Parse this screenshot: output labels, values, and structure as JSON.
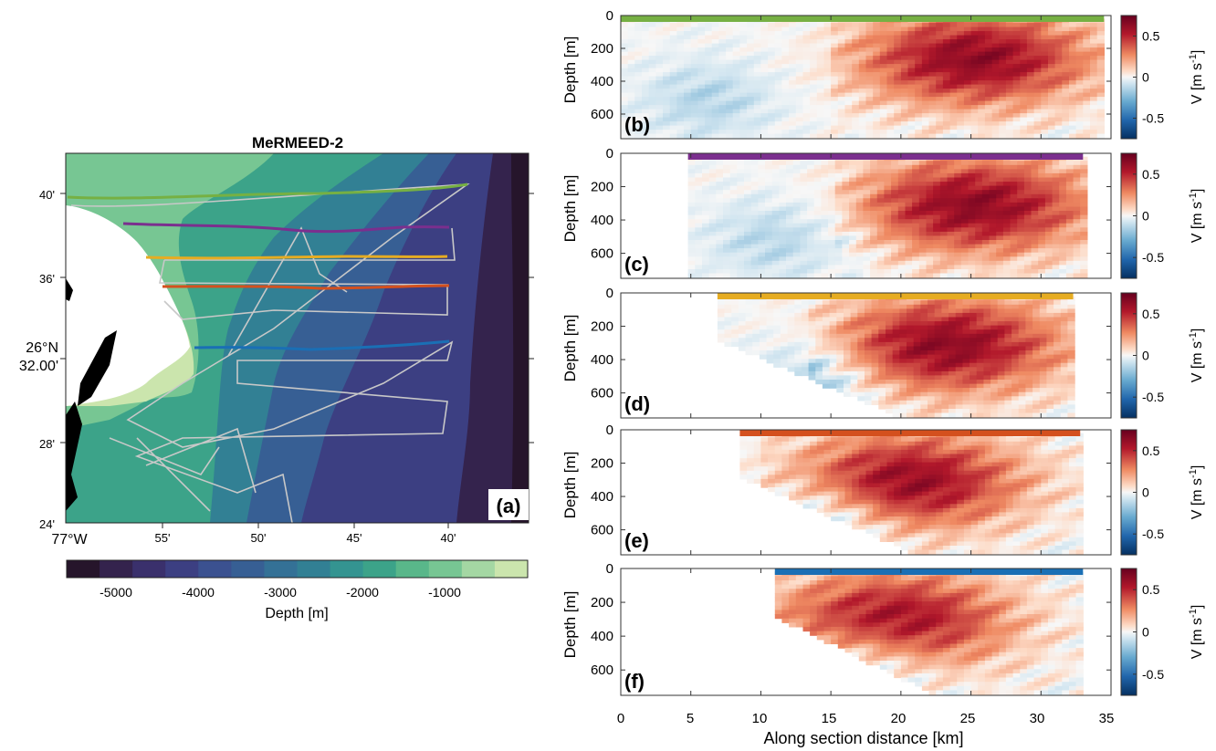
{
  "map": {
    "title": "MeRMEED-2",
    "panel_label": "(a)",
    "lat_labels": [
      "40'",
      "36'",
      "26°N",
      "32.00'",
      "28'",
      "24'"
    ],
    "lon_labels": [
      "77°W",
      "55'",
      "50'",
      "45'",
      "40'"
    ],
    "colorbar": {
      "label": "Depth [m]",
      "ticks": [
        "-5000",
        "-4000",
        "-3000",
        "-2000",
        "-1000"
      ],
      "colors": [
        "#26152b",
        "#34234d",
        "#3a306c",
        "#3c3f82",
        "#3b5190",
        "#375f94",
        "#347196",
        "#328094",
        "#349491",
        "#3ca389",
        "#59b78a",
        "#77c693",
        "#a4d7a3",
        "#cbe5ad"
      ]
    },
    "section_colors": [
      "#76b043",
      "#7b2f8e",
      "#e6ac22",
      "#d4501e",
      "#1a6fb5"
    ]
  },
  "sections": {
    "ylabel": "Depth [m]",
    "xlabel": "Along section distance [km]",
    "y_ticks": [
      "0",
      "200",
      "400",
      "600"
    ],
    "x_ticks": [
      "0",
      "5",
      "10",
      "15",
      "20",
      "25",
      "30",
      "35"
    ],
    "colorbar": {
      "label": "V [m s",
      "label_exp": "-1",
      "label_end": "]",
      "ticks": [
        "0.5",
        "0",
        "-0.5"
      ]
    }
  },
  "chart_data": [
    {
      "type": "heatmap",
      "panel": "(b)",
      "xlim": [
        0,
        35
      ],
      "ylim": [
        750,
        0
      ],
      "x_start": 0,
      "x_end": 34.5,
      "bar_color": "#76b043",
      "jet_core_km": 25,
      "jet_core_depth": 250,
      "vmin": -0.75,
      "vmax": 0.75
    },
    {
      "type": "heatmap",
      "panel": "(c)",
      "xlim": [
        0,
        35
      ],
      "ylim": [
        750,
        0
      ],
      "x_start": 4.8,
      "x_end": 33,
      "bar_color": "#7b2f8e",
      "jet_core_km": 25,
      "jet_core_depth": 300,
      "vmin": -0.75,
      "vmax": 0.75
    },
    {
      "type": "heatmap",
      "panel": "(d)",
      "xlim": [
        0,
        35
      ],
      "ylim": [
        750,
        0
      ],
      "x_start": 6.9,
      "x_end": 32.3,
      "bar_color": "#e6ac22",
      "jet_core_km": 23,
      "jet_core_depth": 300,
      "vmin": -0.75,
      "vmax": 0.75
    },
    {
      "type": "heatmap",
      "panel": "(e)",
      "xlim": [
        0,
        35
      ],
      "ylim": [
        750,
        0
      ],
      "x_start": 8.5,
      "x_end": 32.8,
      "bar_color": "#d4501e",
      "jet_core_km": 20,
      "jet_core_depth": 300,
      "vmin": -0.75,
      "vmax": 0.75
    },
    {
      "type": "heatmap",
      "panel": "(f)",
      "xlim": [
        0,
        35
      ],
      "ylim": [
        750,
        0
      ],
      "x_start": 11,
      "x_end": 33,
      "bar_color": "#1a6fb5",
      "jet_core_km": 19,
      "jet_core_depth": 300,
      "vmin": -0.75,
      "vmax": 0.75
    }
  ]
}
